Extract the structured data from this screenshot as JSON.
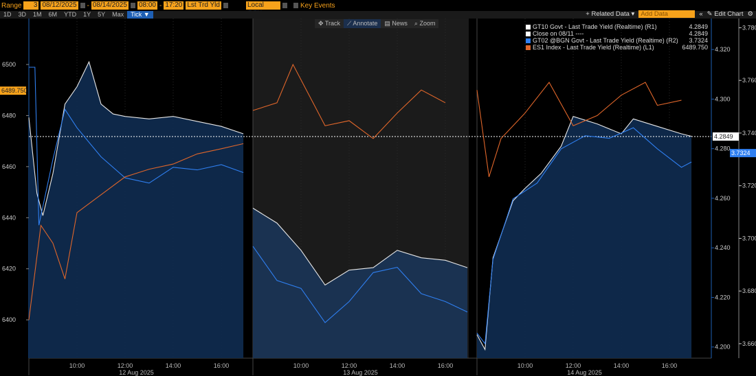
{
  "toolbar": {
    "range_label": "Range",
    "range_value": "3",
    "start_date": "08/12/2025",
    "end_date": "08/14/2025",
    "start_time": "08:00",
    "end_time": "17:20",
    "field": "Lst Trd Yld",
    "currency": "Local CCY",
    "key_events": "Key Events",
    "ranges": [
      "1D",
      "3D",
      "1M",
      "6M",
      "YTD",
      "1Y",
      "5Y",
      "Max",
      "Tick ▼"
    ],
    "active_range": "Tick ▼",
    "related_data": "+ Related Data ▾",
    "add_data_placeholder": "Add Data",
    "collapse": "«",
    "edit_chart": "✎ Edit Chart",
    "settings": "⚙"
  },
  "chart_tools": [
    "✥ Track",
    "⟋ Annotate",
    "▤ News",
    "⌕ Zoom"
  ],
  "colors": {
    "gt10": "#e8e8e8",
    "close": "#ffffff",
    "gt02": "#2f7ff0",
    "es1": "#e0662a",
    "fill": "#0f2a4d",
    "orange": "#f7a21b"
  },
  "chart_data": {
    "type": "line",
    "legend": [
      {
        "name": "GT10 Govt - Last Trade Yield (Realtime) (R1)",
        "value": "4.2849"
      },
      {
        "name": "Close on 08/11 ----",
        "value": "4.2849"
      },
      {
        "name": "GT02 @BGN Govt - Last Trade Yield (Realtime) (R2)",
        "value": "3.7324"
      },
      {
        "name": "ES1 Index - Last Trade Yield (Realtime) (L1)",
        "value": "6489.750"
      }
    ],
    "days": [
      "12 Aug 2025",
      "13 Aug 2025",
      "14 Aug 2025"
    ],
    "time_ticks": [
      "10:00",
      "12:00",
      "14:00",
      "16:00"
    ],
    "left_axis": {
      "ticks": [
        "6400",
        "6420",
        "6440",
        "6460",
        "6480",
        "6500"
      ],
      "range": [
        6385,
        6518
      ],
      "last_label": "6489.750"
    },
    "r1_axis": {
      "ticks": [
        "4.200",
        "4.220",
        "4.240",
        "4.260",
        "4.280",
        "4.300",
        "4.320"
      ],
      "range": [
        4.1955,
        4.3325
      ],
      "last_label": "4.2849",
      "close": 4.2849
    },
    "r2_axis": {
      "ticks": [
        "3.660",
        "3.680",
        "3.700",
        "3.720",
        "3.740",
        "3.760",
        "3.780"
      ],
      "range": [
        3.6545,
        3.7835
      ],
      "last_label": "3.7324"
    },
    "series": [
      {
        "name": "GT10 Govt - Last Trade Yield (Realtime) (R1)",
        "axis": "r1",
        "data": [
          [
            [
              "08:00",
              4.2926
            ],
            [
              "08:20",
              4.262
            ],
            [
              "08:35",
              4.253
            ],
            [
              "09:00",
              4.27
            ],
            [
              "09:30",
              4.298
            ],
            [
              "10:00",
              4.305
            ],
            [
              "10:30",
              4.315
            ],
            [
              "11:00",
              4.298
            ],
            [
              "11:30",
              4.294
            ],
            [
              "12:00",
              4.293
            ],
            [
              "13:00",
              4.292
            ],
            [
              "14:00",
              4.293
            ],
            [
              "15:00",
              4.291
            ],
            [
              "16:00",
              4.289
            ],
            [
              "16:55",
              4.286
            ]
          ],
          [
            [
              "08:00",
              4.256
            ],
            [
              "09:00",
              4.25
            ],
            [
              "10:00",
              4.239
            ],
            [
              "10:30",
              4.232
            ],
            [
              "11:00",
              4.225
            ],
            [
              "12:00",
              4.231
            ],
            [
              "13:00",
              4.232
            ],
            [
              "14:00",
              4.239
            ],
            [
              "15:00",
              4.236
            ],
            [
              "16:00",
              4.235
            ],
            [
              "16:55",
              4.232
            ]
          ],
          [
            [
              "08:00",
              4.205
            ],
            [
              "08:20",
              4.199
            ],
            [
              "08:40",
              4.236
            ],
            [
              "09:30",
              4.259
            ],
            [
              "10:00",
              4.264
            ],
            [
              "10:40",
              4.27
            ],
            [
              "11:30",
              4.281
            ],
            [
              "12:00",
              4.293
            ],
            [
              "13:00",
              4.29
            ],
            [
              "14:00",
              4.286
            ],
            [
              "14:30",
              4.292
            ],
            [
              "15:30",
              4.289
            ],
            [
              "16:30",
              4.286
            ],
            [
              "16:55",
              4.285
            ]
          ]
        ]
      },
      {
        "name": "GT02 @BGN Govt - Last Trade Yield (Realtime) (R2)",
        "axis": "r2",
        "data": [
          [
            [
              "08:00",
              3.765
            ],
            [
              "08:15",
              3.765
            ],
            [
              "08:25",
              3.705
            ],
            [
              "09:00",
              3.73
            ],
            [
              "09:30",
              3.749
            ],
            [
              "10:00",
              3.742
            ],
            [
              "11:00",
              3.731
            ],
            [
              "12:00",
              3.723
            ],
            [
              "13:00",
              3.721
            ],
            [
              "14:00",
              3.727
            ],
            [
              "15:00",
              3.726
            ],
            [
              "16:00",
              3.728
            ],
            [
              "16:55",
              3.725
            ]
          ],
          [
            [
              "08:00",
              3.697
            ],
            [
              "09:00",
              3.684
            ],
            [
              "10:00",
              3.681
            ],
            [
              "11:00",
              3.668
            ],
            [
              "12:00",
              3.676
            ],
            [
              "13:00",
              3.687
            ],
            [
              "14:00",
              3.689
            ],
            [
              "15:00",
              3.679
            ],
            [
              "16:00",
              3.676
            ],
            [
              "16:55",
              3.672
            ]
          ],
          [
            [
              "08:00",
              3.664
            ],
            [
              "08:20",
              3.66
            ],
            [
              "08:40",
              3.692
            ],
            [
              "09:30",
              3.715
            ],
            [
              "10:30",
              3.721
            ],
            [
              "11:30",
              3.734
            ],
            [
              "12:30",
              3.739
            ],
            [
              "13:30",
              3.738
            ],
            [
              "14:30",
              3.742
            ],
            [
              "15:30",
              3.734
            ],
            [
              "16:30",
              3.727
            ],
            [
              "16:55",
              3.729
            ]
          ]
        ]
      },
      {
        "name": "ES1 Index - Last Trade Yield (Realtime) (L1)",
        "axis": "left",
        "data": [
          [
            [
              "08:00",
              6400
            ],
            [
              "08:30",
              6437
            ],
            [
              "09:00",
              6430
            ],
            [
              "09:30",
              6416
            ],
            [
              "10:00",
              6442
            ],
            [
              "11:00",
              6449
            ],
            [
              "12:00",
              6456
            ],
            [
              "13:00",
              6459
            ],
            [
              "14:00",
              6461
            ],
            [
              "15:00",
              6465
            ],
            [
              "16:00",
              6467
            ],
            [
              "16:55",
              6469
            ]
          ],
          [
            [
              "08:00",
              6482
            ],
            [
              "09:00",
              6485
            ],
            [
              "09:40",
              6500
            ],
            [
              "10:30",
              6485
            ],
            [
              "11:00",
              6476
            ],
            [
              "12:00",
              6478
            ],
            [
              "13:00",
              6471
            ],
            [
              "14:00",
              6481
            ],
            [
              "15:00",
              6490
            ],
            [
              "16:00",
              6485
            ]
          ],
          [
            [
              "08:00",
              6490
            ],
            [
              "08:30",
              6456
            ],
            [
              "09:00",
              6471
            ],
            [
              "10:00",
              6481
            ],
            [
              "11:00",
              6493
            ],
            [
              "12:00",
              6476
            ],
            [
              "13:00",
              6480
            ],
            [
              "14:00",
              6488
            ],
            [
              "15:00",
              6493
            ],
            [
              "15:30",
              6484
            ],
            [
              "16:30",
              6486
            ]
          ]
        ]
      }
    ]
  }
}
